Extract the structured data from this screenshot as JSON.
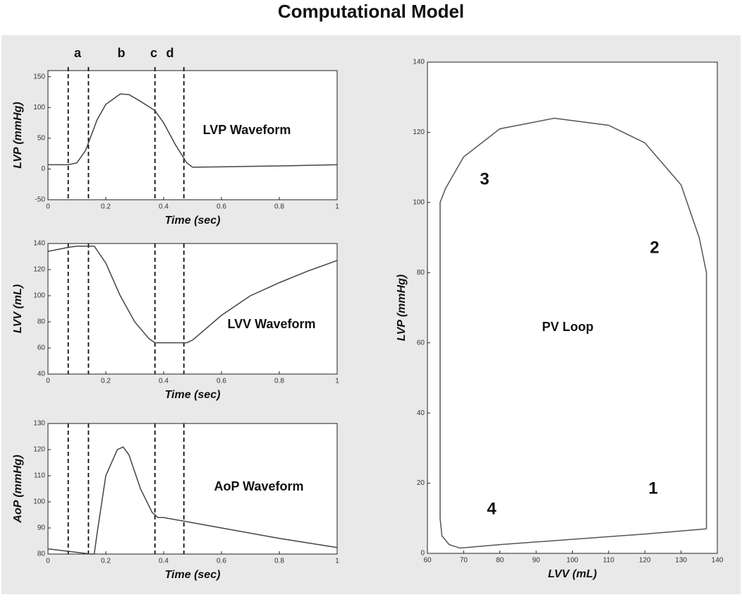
{
  "title": "Computational Model",
  "chart_data": [
    {
      "type": "line",
      "ylabel": "LVP (mmHg)",
      "xlabel": "Time (sec)",
      "annotations": [
        "LVP Waveform",
        "a",
        "b",
        "c",
        "d"
      ],
      "x": [
        0,
        0.07,
        0.1,
        0.13,
        0.15,
        0.17,
        0.2,
        0.25,
        0.28,
        0.32,
        0.37,
        0.4,
        0.44,
        0.48,
        0.5,
        0.6,
        0.8,
        1.0
      ],
      "series": [
        {
          "color": "#444444",
          "values": [
            7,
            7,
            10,
            30,
            55,
            80,
            105,
            122,
            121,
            110,
            95,
            75,
            40,
            10,
            3,
            3.5,
            5,
            7
          ]
        }
      ],
      "markers": [
        0.07,
        0.14,
        0.37,
        0.47
      ],
      "xlim": [
        0,
        1
      ],
      "xticks": [
        0,
        0.2,
        0.4,
        0.6,
        0.8,
        1
      ],
      "ylim": [
        -50,
        160
      ],
      "yticks": [
        -50,
        0,
        50,
        100,
        150
      ]
    },
    {
      "type": "line",
      "ylabel": "LVV (mL)",
      "xlabel": "Time (sec)",
      "annotations": [
        "LVV Waveform"
      ],
      "x": [
        0,
        0.07,
        0.1,
        0.16,
        0.2,
        0.25,
        0.3,
        0.35,
        0.37,
        0.48,
        0.5,
        0.6,
        0.7,
        0.8,
        0.9,
        1.0
      ],
      "series": [
        {
          "color": "#444444",
          "values": [
            134,
            137,
            138,
            138,
            125,
            100,
            80,
            67,
            64,
            64,
            66,
            85,
            100,
            110,
            119,
            127
          ]
        }
      ],
      "markers": [
        0.07,
        0.14,
        0.37,
        0.47
      ],
      "xlim": [
        0,
        1
      ],
      "xticks": [
        0,
        0.2,
        0.4,
        0.6,
        0.8,
        1
      ],
      "ylim": [
        40,
        140
      ],
      "yticks": [
        40,
        60,
        80,
        100,
        120,
        140
      ]
    },
    {
      "type": "line",
      "ylabel": "AoP (mmHg)",
      "xlabel": "Time (sec)",
      "annotations": [
        "AoP Waveform"
      ],
      "x": [
        0,
        0.15,
        0.16,
        0.17,
        0.2,
        0.24,
        0.26,
        0.28,
        0.32,
        0.36,
        0.38,
        0.4,
        0.6,
        0.8,
        1.0
      ],
      "series": [
        {
          "color": "#444444",
          "values": [
            82,
            80,
            80,
            88,
            110,
            120,
            121,
            118,
            105,
            96,
            94,
            94,
            90,
            86,
            82.5
          ]
        }
      ],
      "markers": [
        0.07,
        0.14,
        0.37,
        0.47
      ],
      "xlim": [
        0,
        1
      ],
      "xticks": [
        0,
        0.2,
        0.4,
        0.6,
        0.8,
        1
      ],
      "ylim": [
        80,
        130
      ],
      "yticks": [
        80,
        90,
        100,
        110,
        120,
        130
      ]
    },
    {
      "type": "line",
      "ylabel": "LVP (mmHg)",
      "xlabel": "LVV (mL)",
      "annotations": [
        "3",
        "2",
        "PV Loop",
        "1",
        "4"
      ],
      "x": [
        137,
        137,
        135,
        130,
        120,
        110,
        95,
        80,
        70,
        65,
        63.5,
        63.5,
        64,
        66,
        69,
        80,
        100,
        120,
        137
      ],
      "series": [
        {
          "color": "#555555",
          "values": [
            7,
            80,
            90,
            105,
            117,
            122,
            124,
            121,
            113,
            104,
            100,
            10,
            5,
            2.5,
            1.5,
            2.5,
            4,
            5.5,
            7
          ]
        }
      ],
      "xlim": [
        60,
        140
      ],
      "xticks": [
        60,
        70,
        80,
        90,
        100,
        110,
        120,
        130,
        140
      ],
      "ylim": [
        0,
        140
      ],
      "yticks": [
        0,
        20,
        40,
        60,
        80,
        100,
        120,
        140
      ]
    }
  ]
}
